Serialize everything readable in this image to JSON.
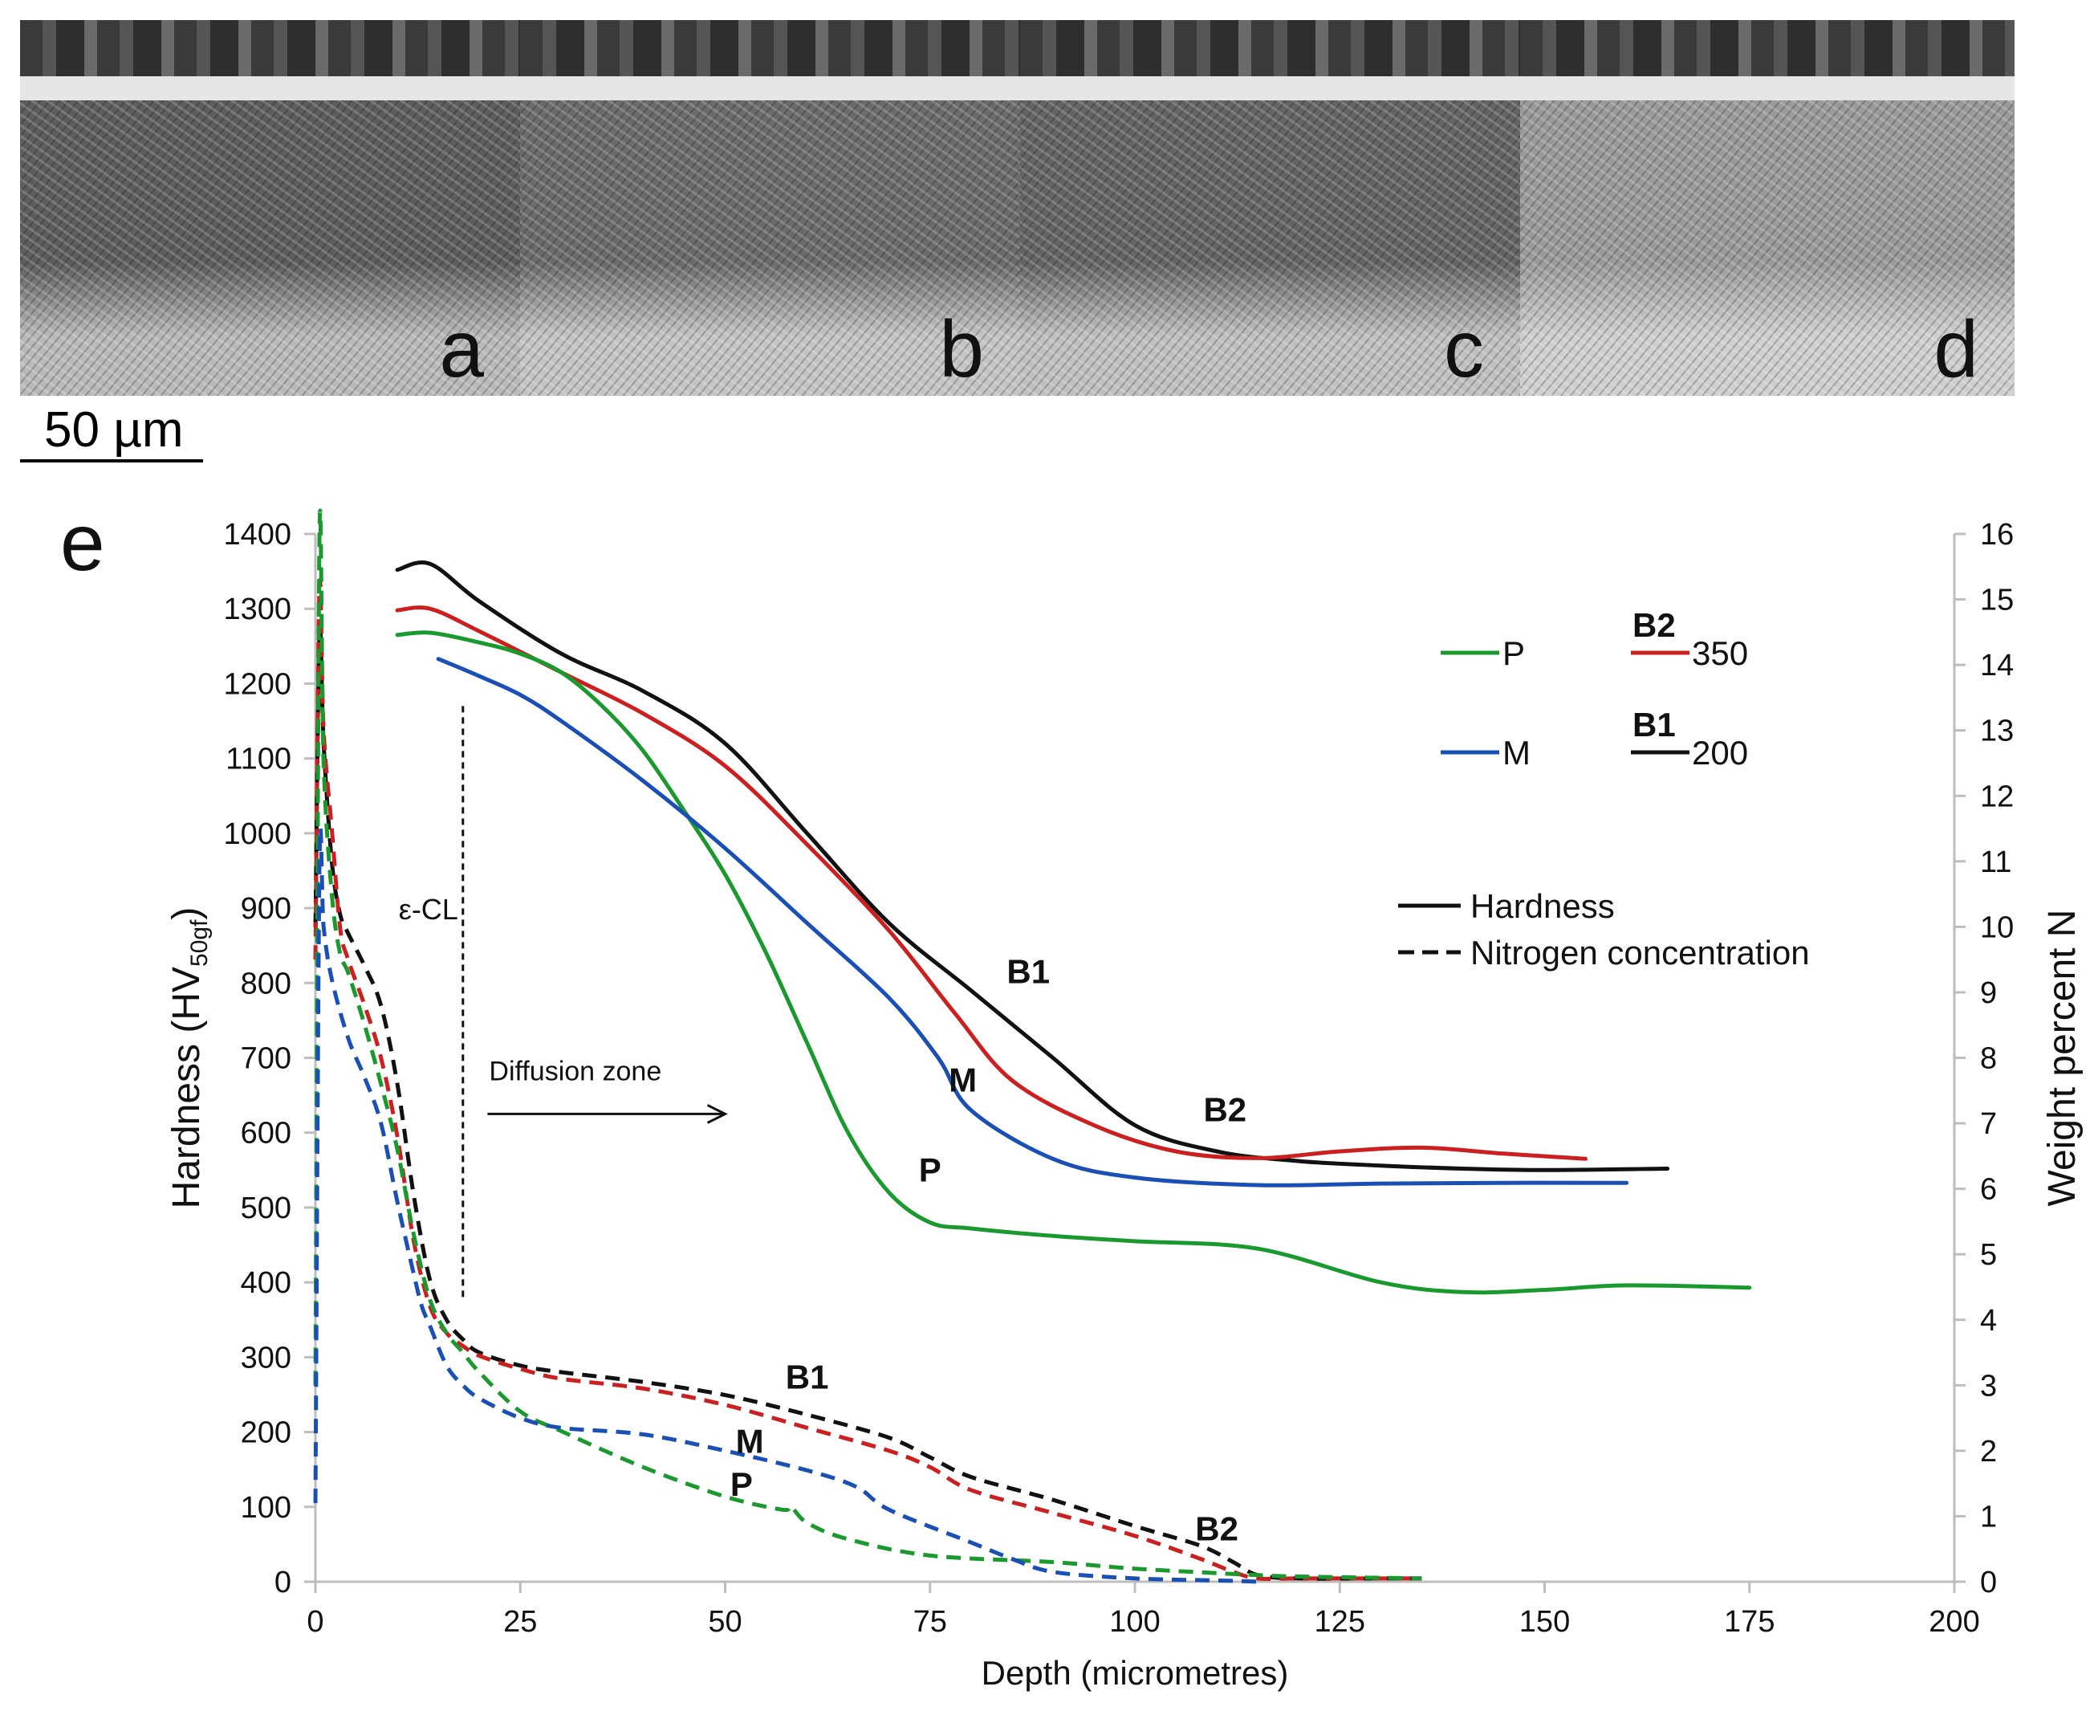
{
  "panels": [
    {
      "label": "a",
      "tone": "#5d5d5d",
      "tone2": "#b9b9b9"
    },
    {
      "label": "b",
      "tone": "#6b6b6b",
      "tone2": "#c4c4c4"
    },
    {
      "label": "c",
      "tone": "#646464",
      "tone2": "#c0c0c0"
    },
    {
      "label": "d",
      "tone": "#9a9a9a",
      "tone2": "#cfcfcf"
    }
  ],
  "scale_bar": "50 µm",
  "chart_data": {
    "type": "line",
    "panel_label": "e",
    "xlabel": "Depth (micrometres)",
    "ylabel": "Hardness (HV",
    "ylabel_sub": "50gf",
    "ylabel_end": ")",
    "y2label": "Weight percent N",
    "xlim": [
      0,
      200
    ],
    "ylim": [
      0,
      1400
    ],
    "y2lim": [
      0,
      16
    ],
    "xticks": [
      "0",
      "25",
      "50",
      "75",
      "100",
      "125",
      "150",
      "175",
      "200"
    ],
    "yticks": [
      "0",
      "100",
      "200",
      "300",
      "400",
      "500",
      "600",
      "700",
      "800",
      "900",
      "1000",
      "1100",
      "1200",
      "1300",
      "1400"
    ],
    "y2ticks": [
      "0",
      "1",
      "2",
      "3",
      "4",
      "5",
      "6",
      "7",
      "8",
      "9",
      "10",
      "11",
      "12",
      "13",
      "14",
      "15",
      "16"
    ],
    "colors": {
      "P": "#1a9a2e",
      "M": "#1a4fb5",
      "B2": "#cc1f1f",
      "B1": "#111111"
    },
    "hardness": [
      {
        "name": "B1",
        "x": [
          10,
          14,
          20,
          30,
          40,
          50,
          60,
          70,
          80,
          90,
          100,
          110,
          120,
          130,
          140,
          150,
          165
        ],
        "y": [
          1352,
          1360,
          1310,
          1240,
          1190,
          1120,
          1000,
          880,
          790,
          700,
          610,
          575,
          562,
          556,
          552,
          550,
          552
        ]
      },
      {
        "name": "B2",
        "x": [
          10,
          14,
          20,
          30,
          40,
          50,
          60,
          70,
          78,
          85,
          95,
          105,
          115,
          125,
          135,
          145,
          155
        ],
        "y": [
          1298,
          1300,
          1270,
          1215,
          1160,
          1090,
          985,
          870,
          760,
          670,
          610,
          575,
          566,
          575,
          580,
          572,
          565
        ]
      },
      {
        "name": "P",
        "x": [
          10,
          14,
          20,
          25,
          30,
          35,
          40,
          45,
          50,
          55,
          60,
          65,
          70,
          75,
          80,
          90,
          100,
          115,
          130,
          140,
          150,
          160,
          175
        ],
        "y": [
          1265,
          1268,
          1255,
          1240,
          1215,
          1170,
          1110,
          1030,
          945,
          840,
          720,
          600,
          520,
          480,
          472,
          462,
          455,
          445,
          400,
          387,
          390,
          396,
          393
        ]
      },
      {
        "name": "M",
        "x": [
          15,
          20,
          25,
          30,
          40,
          50,
          60,
          70,
          76,
          80,
          90,
          100,
          115,
          130,
          145,
          160
        ],
        "y": [
          1233,
          1210,
          1185,
          1150,
          1070,
          980,
          880,
          780,
          700,
          630,
          565,
          540,
          530,
          532,
          533,
          533
        ]
      }
    ],
    "nitrogen": [
      {
        "name": "B1",
        "x": [
          0,
          0.5,
          1,
          2,
          3,
          4,
          6,
          8,
          10,
          12,
          14,
          16,
          18,
          20,
          25,
          30,
          40,
          50,
          60,
          70,
          75,
          80,
          90,
          100,
          108,
          112,
          115,
          120,
          130,
          135
        ],
        "y": [
          10.0,
          14.5,
          12.8,
          11.0,
          10.2,
          9.9,
          9.4,
          8.8,
          7.6,
          5.9,
          4.6,
          4.0,
          3.7,
          3.5,
          3.3,
          3.2,
          3.05,
          2.85,
          2.55,
          2.2,
          1.9,
          1.6,
          1.25,
          0.85,
          0.55,
          0.3,
          0.1,
          0.05,
          0.05,
          0.05
        ]
      },
      {
        "name": "B2",
        "x": [
          0,
          0.5,
          1,
          2,
          3,
          4,
          6,
          8,
          10,
          12,
          14,
          16,
          18,
          20,
          25,
          30,
          40,
          50,
          60,
          70,
          75,
          80,
          90,
          100,
          108,
          112,
          115,
          120,
          130,
          135
        ],
        "y": [
          9.5,
          15.2,
          13.0,
          11.5,
          10.0,
          9.5,
          8.8,
          8.0,
          6.8,
          5.2,
          4.2,
          3.8,
          3.6,
          3.45,
          3.25,
          3.1,
          2.95,
          2.7,
          2.35,
          2.0,
          1.75,
          1.4,
          1.05,
          0.7,
          0.35,
          0.15,
          0.05,
          0.05,
          0.05,
          0.05
        ]
      },
      {
        "name": "P",
        "x": [
          0,
          0.5,
          1,
          2,
          3,
          4,
          6,
          8,
          10,
          12,
          14,
          16,
          18,
          20,
          25,
          30,
          40,
          50,
          57,
          58,
          60,
          65,
          75,
          90,
          100,
          115,
          120,
          135
        ],
        "y": [
          3.0,
          16.0,
          12.5,
          10.5,
          9.6,
          9.3,
          8.5,
          7.6,
          6.6,
          5.3,
          4.3,
          3.8,
          3.5,
          3.2,
          2.6,
          2.3,
          1.75,
          1.3,
          1.1,
          1.15,
          0.9,
          0.65,
          0.4,
          0.3,
          0.2,
          0.1,
          0.08,
          0.05
        ]
      },
      {
        "name": "M",
        "x": [
          0,
          0.5,
          1,
          2,
          4,
          6,
          8,
          10,
          12,
          13,
          14,
          16,
          18,
          20,
          25,
          30,
          40,
          50,
          60,
          66,
          70,
          80,
          85,
          90,
          100,
          110,
          115
        ],
        "y": [
          1.2,
          11.0,
          10.0,
          9.2,
          8.3,
          7.7,
          7.0,
          5.8,
          4.7,
          4.2,
          3.9,
          3.3,
          3.0,
          2.8,
          2.5,
          2.35,
          2.25,
          2.0,
          1.7,
          1.45,
          1.1,
          0.6,
          0.35,
          0.15,
          0.05,
          0.02,
          0.0
        ]
      }
    ],
    "legend_series": [
      {
        "name": "P",
        "label": "P"
      },
      {
        "name": "M",
        "label": "M"
      },
      {
        "name": "B2",
        "label": "350",
        "tag": "B2"
      },
      {
        "name": "B1",
        "label": "200",
        "tag": "B1"
      }
    ],
    "legend_styles": [
      {
        "label": "Hardness",
        "style": "solid"
      },
      {
        "label": "Nitrogen concentration",
        "style": "dashed"
      }
    ],
    "annotations": {
      "ecl": "ε-CL",
      "ecl_depth": 18,
      "ecl_line_top": 1170,
      "ecl_line_bottom": 375,
      "diffusion": "Diffusion zone",
      "arrow_from": 21,
      "arrow_to": 50,
      "arrow_y": 625,
      "series_labels": [
        {
          "text": "B1",
          "x": 87,
          "y": 800
        },
        {
          "text": "M",
          "x": 79,
          "y": 655
        },
        {
          "text": "B2",
          "x": 111,
          "y": 615
        },
        {
          "text": "P",
          "x": 75,
          "y": 535
        },
        {
          "text": "B1",
          "x": 60,
          "y": 258
        },
        {
          "text": "M",
          "x": 53,
          "y": 172
        },
        {
          "text": "P",
          "x": 52,
          "y": 115
        },
        {
          "text": "B2",
          "x": 110,
          "y": 55
        }
      ]
    }
  }
}
